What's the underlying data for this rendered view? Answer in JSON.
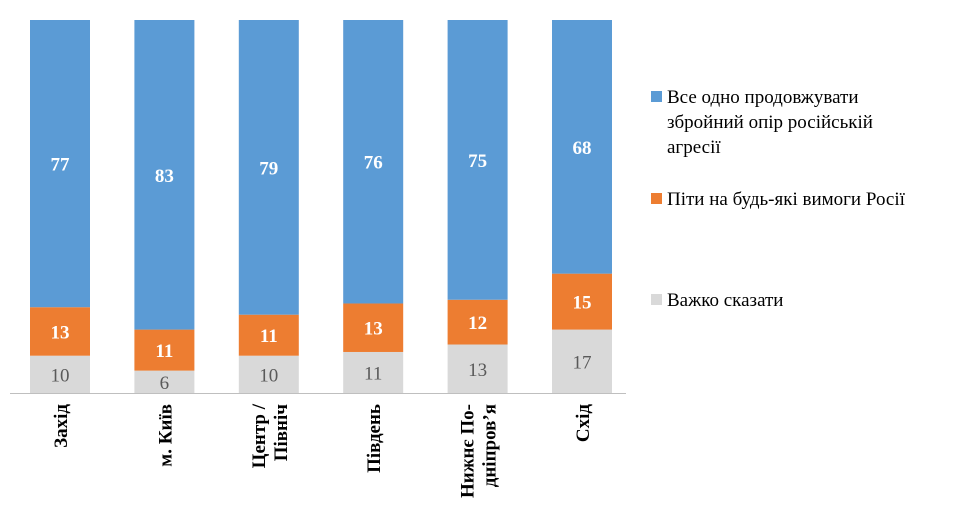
{
  "colors": {
    "series1": "#5b9bd5",
    "series2": "#ed7d31",
    "series3": "#d9d9d9",
    "axis": "#bfbfbf",
    "label_light": "#ffffff",
    "label_dark": "#595959"
  },
  "chart_data": {
    "type": "bar",
    "stacked": true,
    "percent": true,
    "categories": [
      [
        "Захід"
      ],
      [
        "м. Київ"
      ],
      [
        "Центр /",
        "Північ"
      ],
      [
        "Південь"
      ],
      [
        "Нижнє По-",
        "дніпров’я"
      ],
      [
        "Схід"
      ]
    ],
    "series": [
      {
        "name": [
          "Все одно продовжувати",
          "збройний опір російській",
          "агресії"
        ],
        "values": [
          77,
          83,
          79,
          76,
          75,
          68
        ]
      },
      {
        "name": [
          "Піти на будь-які вимоги Росії"
        ],
        "values": [
          13,
          11,
          11,
          13,
          12,
          15
        ]
      },
      {
        "name": [
          "Важко сказати"
        ],
        "values": [
          10,
          6,
          10,
          11,
          13,
          17
        ]
      }
    ],
    "ylim": [
      0,
      100
    ],
    "legend_position": "right",
    "grid": false
  }
}
